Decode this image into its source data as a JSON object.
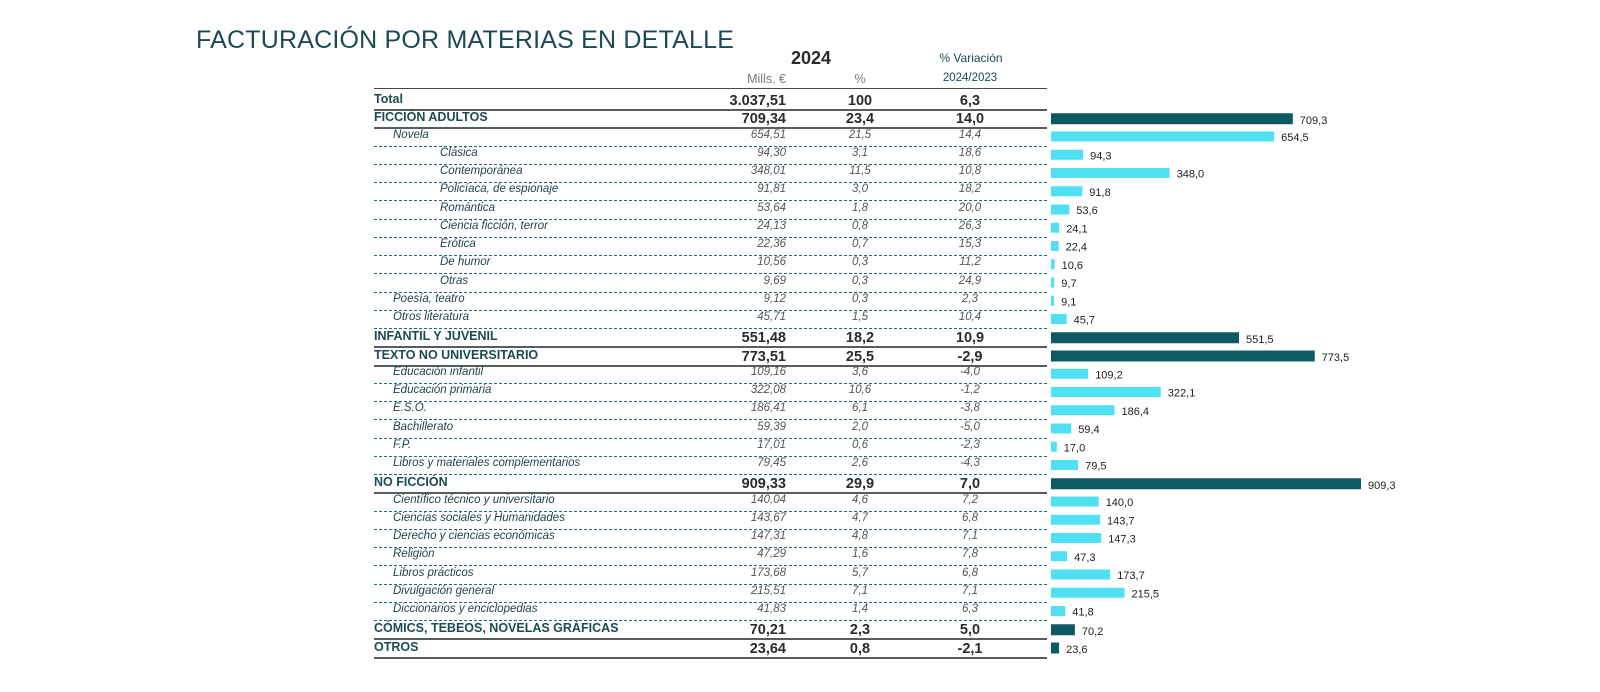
{
  "title": "FACTURACIÓN POR MATERIAS EN DETALLE",
  "header": {
    "year": "2024",
    "variation": "% Variación",
    "mills": "Mills. €",
    "pct": "%",
    "years_compared": "2024/2023"
  },
  "colors": {
    "main_bar": "#0d5a64",
    "sub_bar": "#4fe0f2",
    "title": "#1b4a55"
  },
  "chart_data": {
    "type": "table",
    "columns": [
      "Mills. €",
      "%",
      "% Variación 2024/2023"
    ],
    "bar_column": "Mills. €",
    "rows": [
      {
        "label": "Total",
        "level": "total",
        "mills": "3.037,51",
        "pct": "100",
        "var": "6,3",
        "value": 3037.51
      },
      {
        "label": "FICCIÓN ADULTOS",
        "level": "main",
        "mills": "709,34",
        "pct": "23,4",
        "var": "14,0",
        "value": 709.34,
        "bar_label": "709,3"
      },
      {
        "label": "Novela",
        "level": "sub1",
        "mills": "654,51",
        "pct": "21,5",
        "var": "14,4",
        "value": 654.51,
        "bar_label": "654,5"
      },
      {
        "label": "Clásica",
        "level": "sub2",
        "mills": "94,30",
        "pct": "3,1",
        "var": "18,6",
        "value": 94.3,
        "bar_label": "94,3"
      },
      {
        "label": "Contemporánea",
        "level": "sub2",
        "mills": "348,01",
        "pct": "11,5",
        "var": "10,8",
        "value": 348.01,
        "bar_label": "348,0"
      },
      {
        "label": "Policíaca, de espionaje",
        "level": "sub2",
        "mills": "91,81",
        "pct": "3,0",
        "var": "18,2",
        "value": 91.81,
        "bar_label": "91,8"
      },
      {
        "label": "Romántica",
        "level": "sub2",
        "mills": "53,64",
        "pct": "1,8",
        "var": "20,0",
        "value": 53.64,
        "bar_label": "53,6"
      },
      {
        "label": "Ciencia ficción, terror",
        "level": "sub2",
        "mills": "24,13",
        "pct": "0,8",
        "var": "26,3",
        "value": 24.13,
        "bar_label": "24,1"
      },
      {
        "label": "Erótica",
        "level": "sub2",
        "mills": "22,36",
        "pct": "0,7",
        "var": "15,3",
        "value": 22.36,
        "bar_label": "22,4"
      },
      {
        "label": "De humor",
        "level": "sub2",
        "mills": "10,56",
        "pct": "0,3",
        "var": "11,2",
        "value": 10.56,
        "bar_label": "10,6"
      },
      {
        "label": "Otras",
        "level": "sub2",
        "mills": "9,69",
        "pct": "0,3",
        "var": "24,9",
        "value": 9.69,
        "bar_label": "9,7"
      },
      {
        "label": "Poesía, teatro",
        "level": "sub1",
        "mills": "9,12",
        "pct": "0,3",
        "var": "2,3",
        "value": 9.12,
        "bar_label": "9,1"
      },
      {
        "label": "Otros literatura",
        "level": "sub1",
        "mills": "45,71",
        "pct": "1,5",
        "var": "10,4",
        "value": 45.71,
        "bar_label": "45,7"
      },
      {
        "label": "INFANTIL Y JUVENIL",
        "level": "main",
        "mills": "551,48",
        "pct": "18,2",
        "var": "10,9",
        "value": 551.48,
        "bar_label": "551,5"
      },
      {
        "label": "TEXTO NO UNIVERSITARIO",
        "level": "main",
        "mills": "773,51",
        "pct": "25,5",
        "var": "-2,9",
        "value": 773.51,
        "bar_label": "773,5"
      },
      {
        "label": "Educación infantil",
        "level": "sub1",
        "mills": "109,16",
        "pct": "3,6",
        "var": "-4,0",
        "value": 109.16,
        "bar_label": "109,2"
      },
      {
        "label": "Educación primaria",
        "level": "sub1",
        "mills": "322,08",
        "pct": "10,6",
        "var": "-1,2",
        "value": 322.08,
        "bar_label": "322,1"
      },
      {
        "label": "E.S.O.",
        "level": "sub1",
        "mills": "186,41",
        "pct": "6,1",
        "var": "-3,8",
        "value": 186.41,
        "bar_label": "186,4"
      },
      {
        "label": "Bachillerato",
        "level": "sub1",
        "mills": "59,39",
        "pct": "2,0",
        "var": "-5,0",
        "value": 59.39,
        "bar_label": "59,4"
      },
      {
        "label": "F.P.",
        "level": "sub1",
        "mills": "17,01",
        "pct": "0,6",
        "var": "-2,3",
        "value": 17.01,
        "bar_label": "17,0"
      },
      {
        "label": "Libros y materiales complementarios",
        "level": "sub1",
        "mills": "79,45",
        "pct": "2,6",
        "var": "-4,3",
        "value": 79.45,
        "bar_label": "79,5"
      },
      {
        "label": "NO FICCIÓN",
        "level": "main",
        "mills": "909,33",
        "pct": "29,9",
        "var": "7,0",
        "value": 909.33,
        "bar_label": "909,3"
      },
      {
        "label": "Científico técnico y universitario",
        "level": "sub1",
        "mills": "140,04",
        "pct": "4,6",
        "var": "7,2",
        "value": 140.04,
        "bar_label": "140,0"
      },
      {
        "label": "Ciencias sociales y Humanidades",
        "level": "sub1",
        "mills": "143,67",
        "pct": "4,7",
        "var": "6,8",
        "value": 143.67,
        "bar_label": "143,7"
      },
      {
        "label": "Derecho y ciencias económicas",
        "level": "sub1",
        "mills": "147,31",
        "pct": "4,8",
        "var": "7,1",
        "value": 147.31,
        "bar_label": "147,3"
      },
      {
        "label": "Religión",
        "level": "sub1",
        "mills": "47,29",
        "pct": "1,6",
        "var": "7,8",
        "value": 47.29,
        "bar_label": "47,3"
      },
      {
        "label": "Libros prácticos",
        "level": "sub1",
        "mills": "173,68",
        "pct": "5,7",
        "var": "6,8",
        "value": 173.68,
        "bar_label": "173,7"
      },
      {
        "label": "Divulgación general",
        "level": "sub1",
        "mills": "215,51",
        "pct": "7,1",
        "var": "7,1",
        "value": 215.51,
        "bar_label": "215,5"
      },
      {
        "label": "Diccionarios y enciclopedias",
        "level": "sub1",
        "mills": "41,83",
        "pct": "1,4",
        "var": "6,3",
        "value": 41.83,
        "bar_label": "41,8"
      },
      {
        "label": "CÓMICS, TEBEOS, NOVELAS GRÁFICAS",
        "level": "main",
        "mills": "70,21",
        "pct": "2,3",
        "var": "5,0",
        "value": 70.21,
        "bar_label": "70,2"
      },
      {
        "label": "OTROS",
        "level": "main",
        "mills": "23,64",
        "pct": "0,8",
        "var": "-2,1",
        "value": 23.64,
        "bar_label": "23,6"
      }
    ]
  }
}
